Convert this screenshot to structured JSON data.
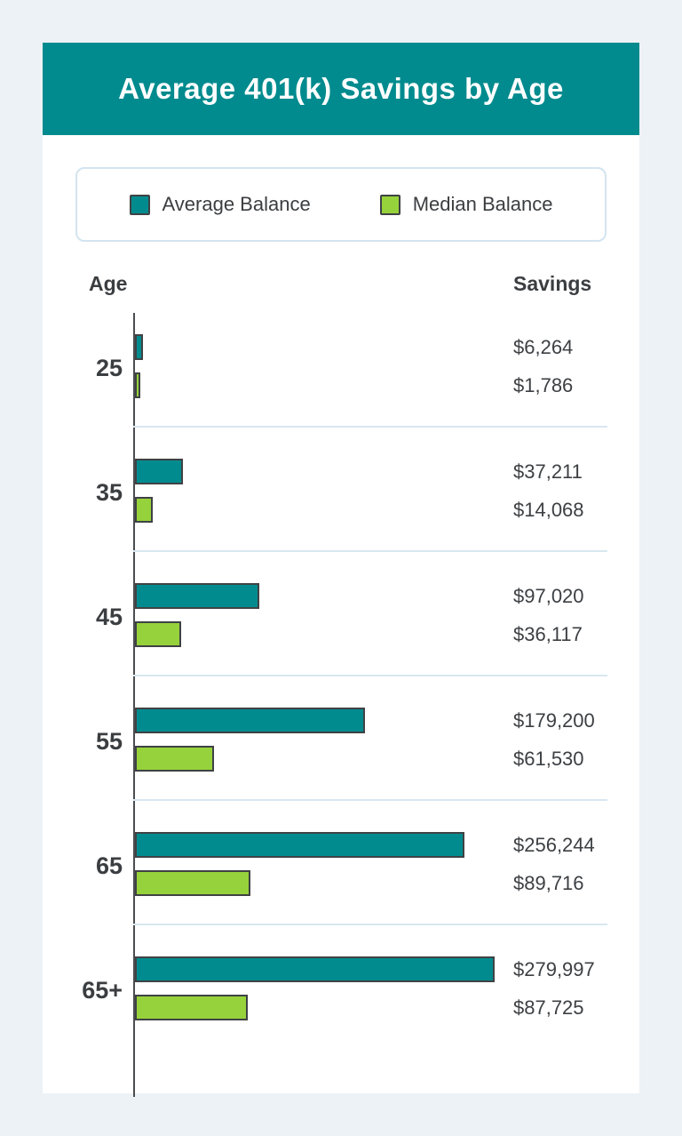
{
  "page": {
    "background": "#edf2f6",
    "card_background": "#ffffff"
  },
  "header": {
    "title": "Average 401(k) Savings by Age",
    "background": "#018b8e",
    "text_color": "#ffffff"
  },
  "legend": {
    "items": [
      {
        "label": "Average Balance",
        "color": "#018b8e"
      },
      {
        "label": "Median Balance",
        "color": "#96d23b"
      }
    ]
  },
  "columns": {
    "age_label": "Age",
    "savings_label": "Savings"
  },
  "chart_data": {
    "type": "bar",
    "orientation": "horizontal",
    "title": "Average 401(k) Savings by Age",
    "categories": [
      "25",
      "35",
      "45",
      "55",
      "65",
      "65+"
    ],
    "series": [
      {
        "name": "Average Balance",
        "color": "#018b8e",
        "values": [
          6264,
          37211,
          97020,
          179200,
          256244,
          279997
        ],
        "labels": [
          "$6,264",
          "$37,211",
          "$97,020",
          "$179,200",
          "$256,244",
          "$279,997"
        ]
      },
      {
        "name": "Median Balance",
        "color": "#96d23b",
        "values": [
          1786,
          14068,
          36117,
          61530,
          89716,
          87725
        ],
        "labels": [
          "$1,786",
          "$14,068",
          "$36,117",
          "$61,530",
          "$89,716",
          "$87,725"
        ]
      }
    ],
    "xlim": [
      0,
      280000
    ],
    "category_axis_label": "Age",
    "value_axis_label": "Savings",
    "grid": "row-separators",
    "legend_position": "top"
  }
}
